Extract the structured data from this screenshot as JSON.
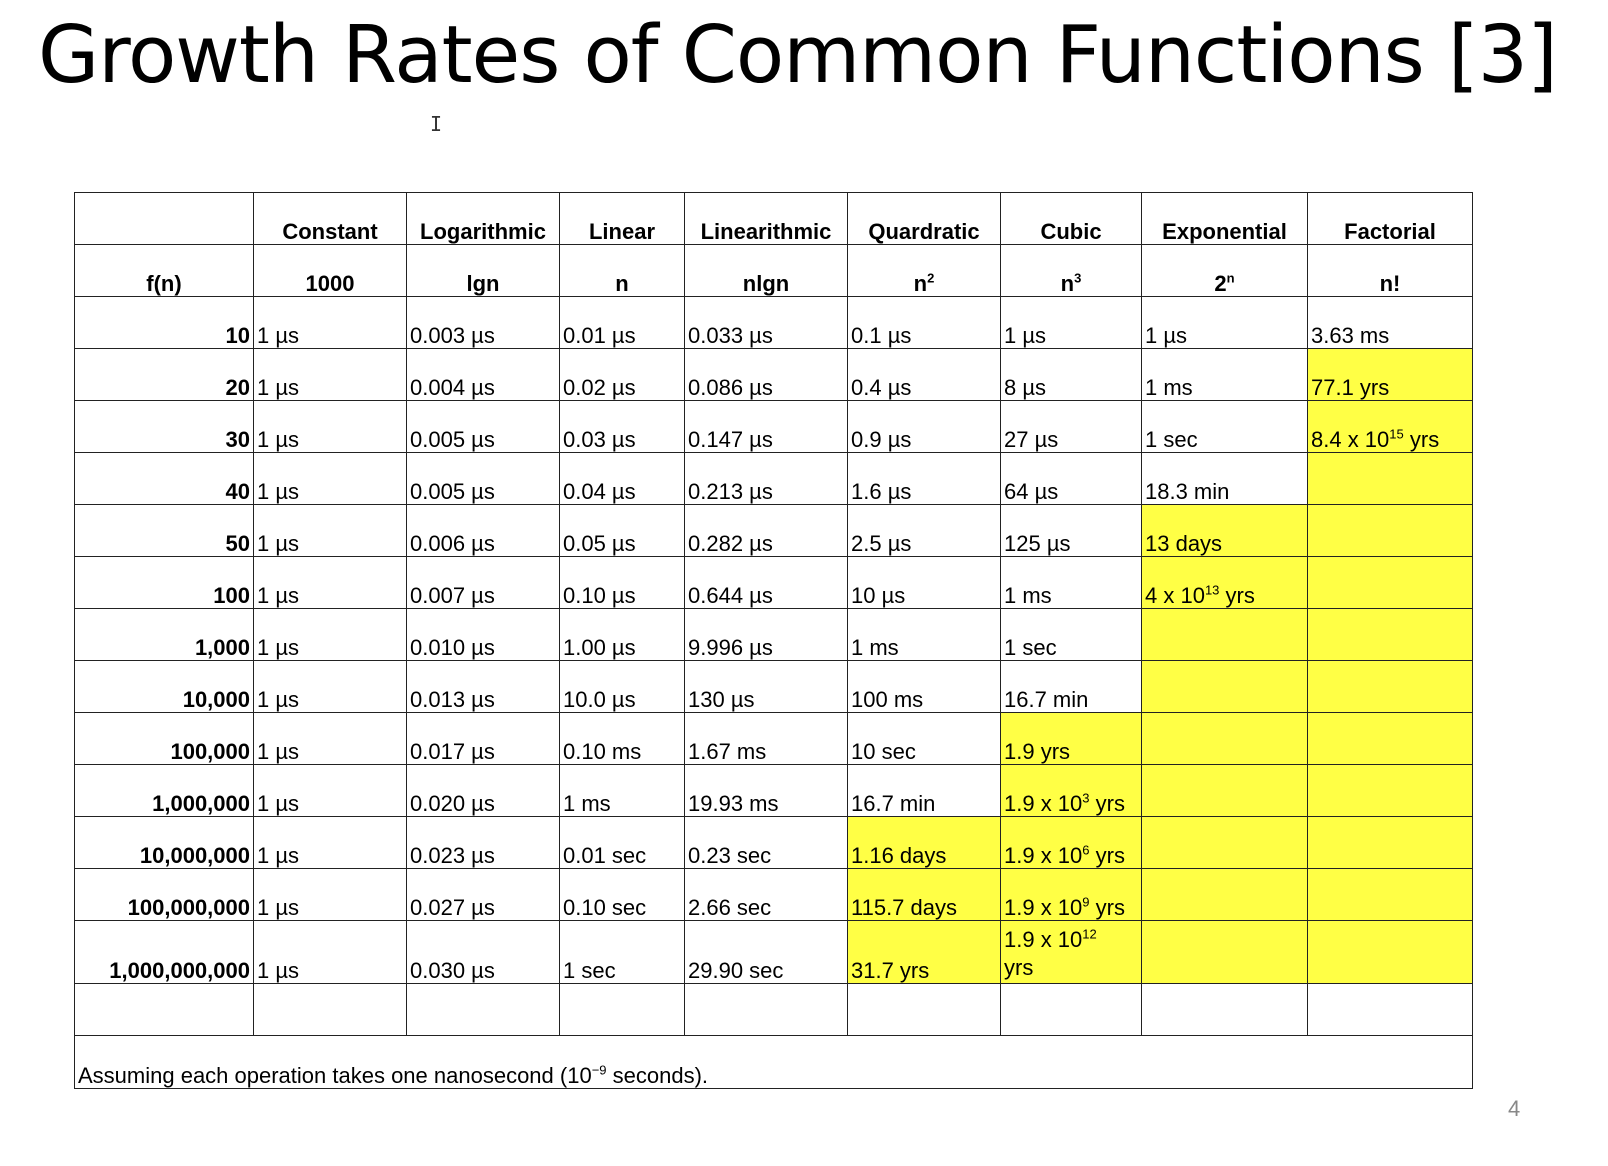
{
  "title": "Growth Rates of Common Functions [3]",
  "cursor": "I",
  "header": {
    "categories": [
      "Constant",
      "Logarithmic",
      "Linear",
      "Linearithmic",
      "Quardratic",
      "Cubic",
      "Exponential",
      "Factorial"
    ],
    "fn_label": "f(n)",
    "fn": {
      "constant": "1000",
      "logarithmic": "lgn",
      "linear": "n",
      "linearithmic": "nlgn",
      "quadratic_base": "n",
      "quadratic_exp": "2",
      "cubic_base": "n",
      "cubic_exp": "3",
      "exponential_base": "2",
      "exponential_exp": "n",
      "factorial": "n!"
    }
  },
  "rows": [
    {
      "n": "10",
      "c": [
        "1 µs",
        "0.003  µs",
        "0.01  µs",
        "0.033 µs",
        "0.1 µs",
        "1     µs",
        "1 µs",
        "3.63 ms"
      ]
    },
    {
      "n": "20",
      "c": [
        "1 µs",
        "0.004  µs",
        "0.02  µs",
        "0.086 µs",
        "0.4 µs",
        "8     µs",
        "1 ms",
        "77.1  yrs"
      ]
    },
    {
      "n": "30",
      "c": [
        "1 µs",
        "0.005  µs",
        "0.03  µs",
        "0.147 µs",
        "0.9 µs",
        "27     µs",
        "1 sec",
        ""
      ]
    },
    {
      "n": "40",
      "c": [
        "1 µs",
        "0.005  µs",
        "0.04  µs",
        "0.213 µs",
        "1.6 µs",
        "64     µs",
        "18.3 min",
        ""
      ]
    },
    {
      "n": "50",
      "c": [
        "1 µs",
        "0.006  µs",
        "0.05  µs",
        "0.282 µs",
        "2.5 µs",
        "125     µs",
        "13 days",
        ""
      ]
    },
    {
      "n": "100",
      "c": [
        "1 µs",
        "0.007  µs",
        "0.10  µs",
        "0.644 µs",
        "10 µs",
        "1 ms",
        "",
        ""
      ]
    },
    {
      "n": "1,000",
      "c": [
        "1 µs",
        "0.010  µs",
        "1.00  µs",
        "9.996 µs",
        "1 ms",
        "1 sec",
        "",
        ""
      ]
    },
    {
      "n": "10,000",
      "c": [
        "1 µs",
        "0.013  µs",
        "10.0  µs",
        "130 µs",
        "100 ms",
        "16.7 min",
        "",
        ""
      ]
    },
    {
      "n": "100,000",
      "c": [
        "1 µs",
        "0.017  µs",
        "0.10 ms",
        "1.67 ms",
        "10 sec",
        "1.9 yrs",
        "",
        ""
      ]
    },
    {
      "n": "1,000,000",
      "c": [
        "1 µs",
        "0.020  µs",
        "1 ms",
        "19.93 ms",
        "16.7 min",
        "",
        "",
        ""
      ]
    },
    {
      "n": "10,000,000",
      "c": [
        "1 µs",
        "0.023  µs",
        "0.01  sec",
        "0.23 sec",
        "1.16 days",
        "",
        "",
        ""
      ]
    },
    {
      "n": "100,000,000",
      "c": [
        "1 µs",
        "0.027  µs",
        "0.10  sec",
        "2.66 sec",
        "115.7 days",
        "",
        "",
        ""
      ]
    },
    {
      "n": "1,000,000,000",
      "c": [
        "1 µs",
        "0.030  µs",
        "1 sec",
        "29.90 sec",
        "31.7 yrs",
        "",
        "",
        ""
      ]
    }
  ],
  "sup_cells": {
    "fact_30": {
      "pre": "8.4 x 10",
      "exp": "15",
      "post": " yrs"
    },
    "exp_100": {
      "pre": "4 x 10",
      "exp": "13",
      "post": " yrs"
    },
    "cubic_1e6": {
      "pre": "1.9 x 10",
      "exp": "3",
      "post": " yrs"
    },
    "cubic_1e7": {
      "pre": "1.9 x 10",
      "exp": "6",
      "post": " yrs"
    },
    "cubic_1e8": {
      "pre": "1.9 x 10",
      "exp": "9",
      "post": " yrs"
    },
    "cubic_1e9": {
      "pre": "1.9 x 10",
      "exp": "12",
      "post": "yrs"
    }
  },
  "footnote": {
    "pre": "Assuming each operation takes one nanosecond (10",
    "exp": "−9",
    "post": " seconds)."
  },
  "page_number": "4",
  "highlight_color": "#ffff45"
}
